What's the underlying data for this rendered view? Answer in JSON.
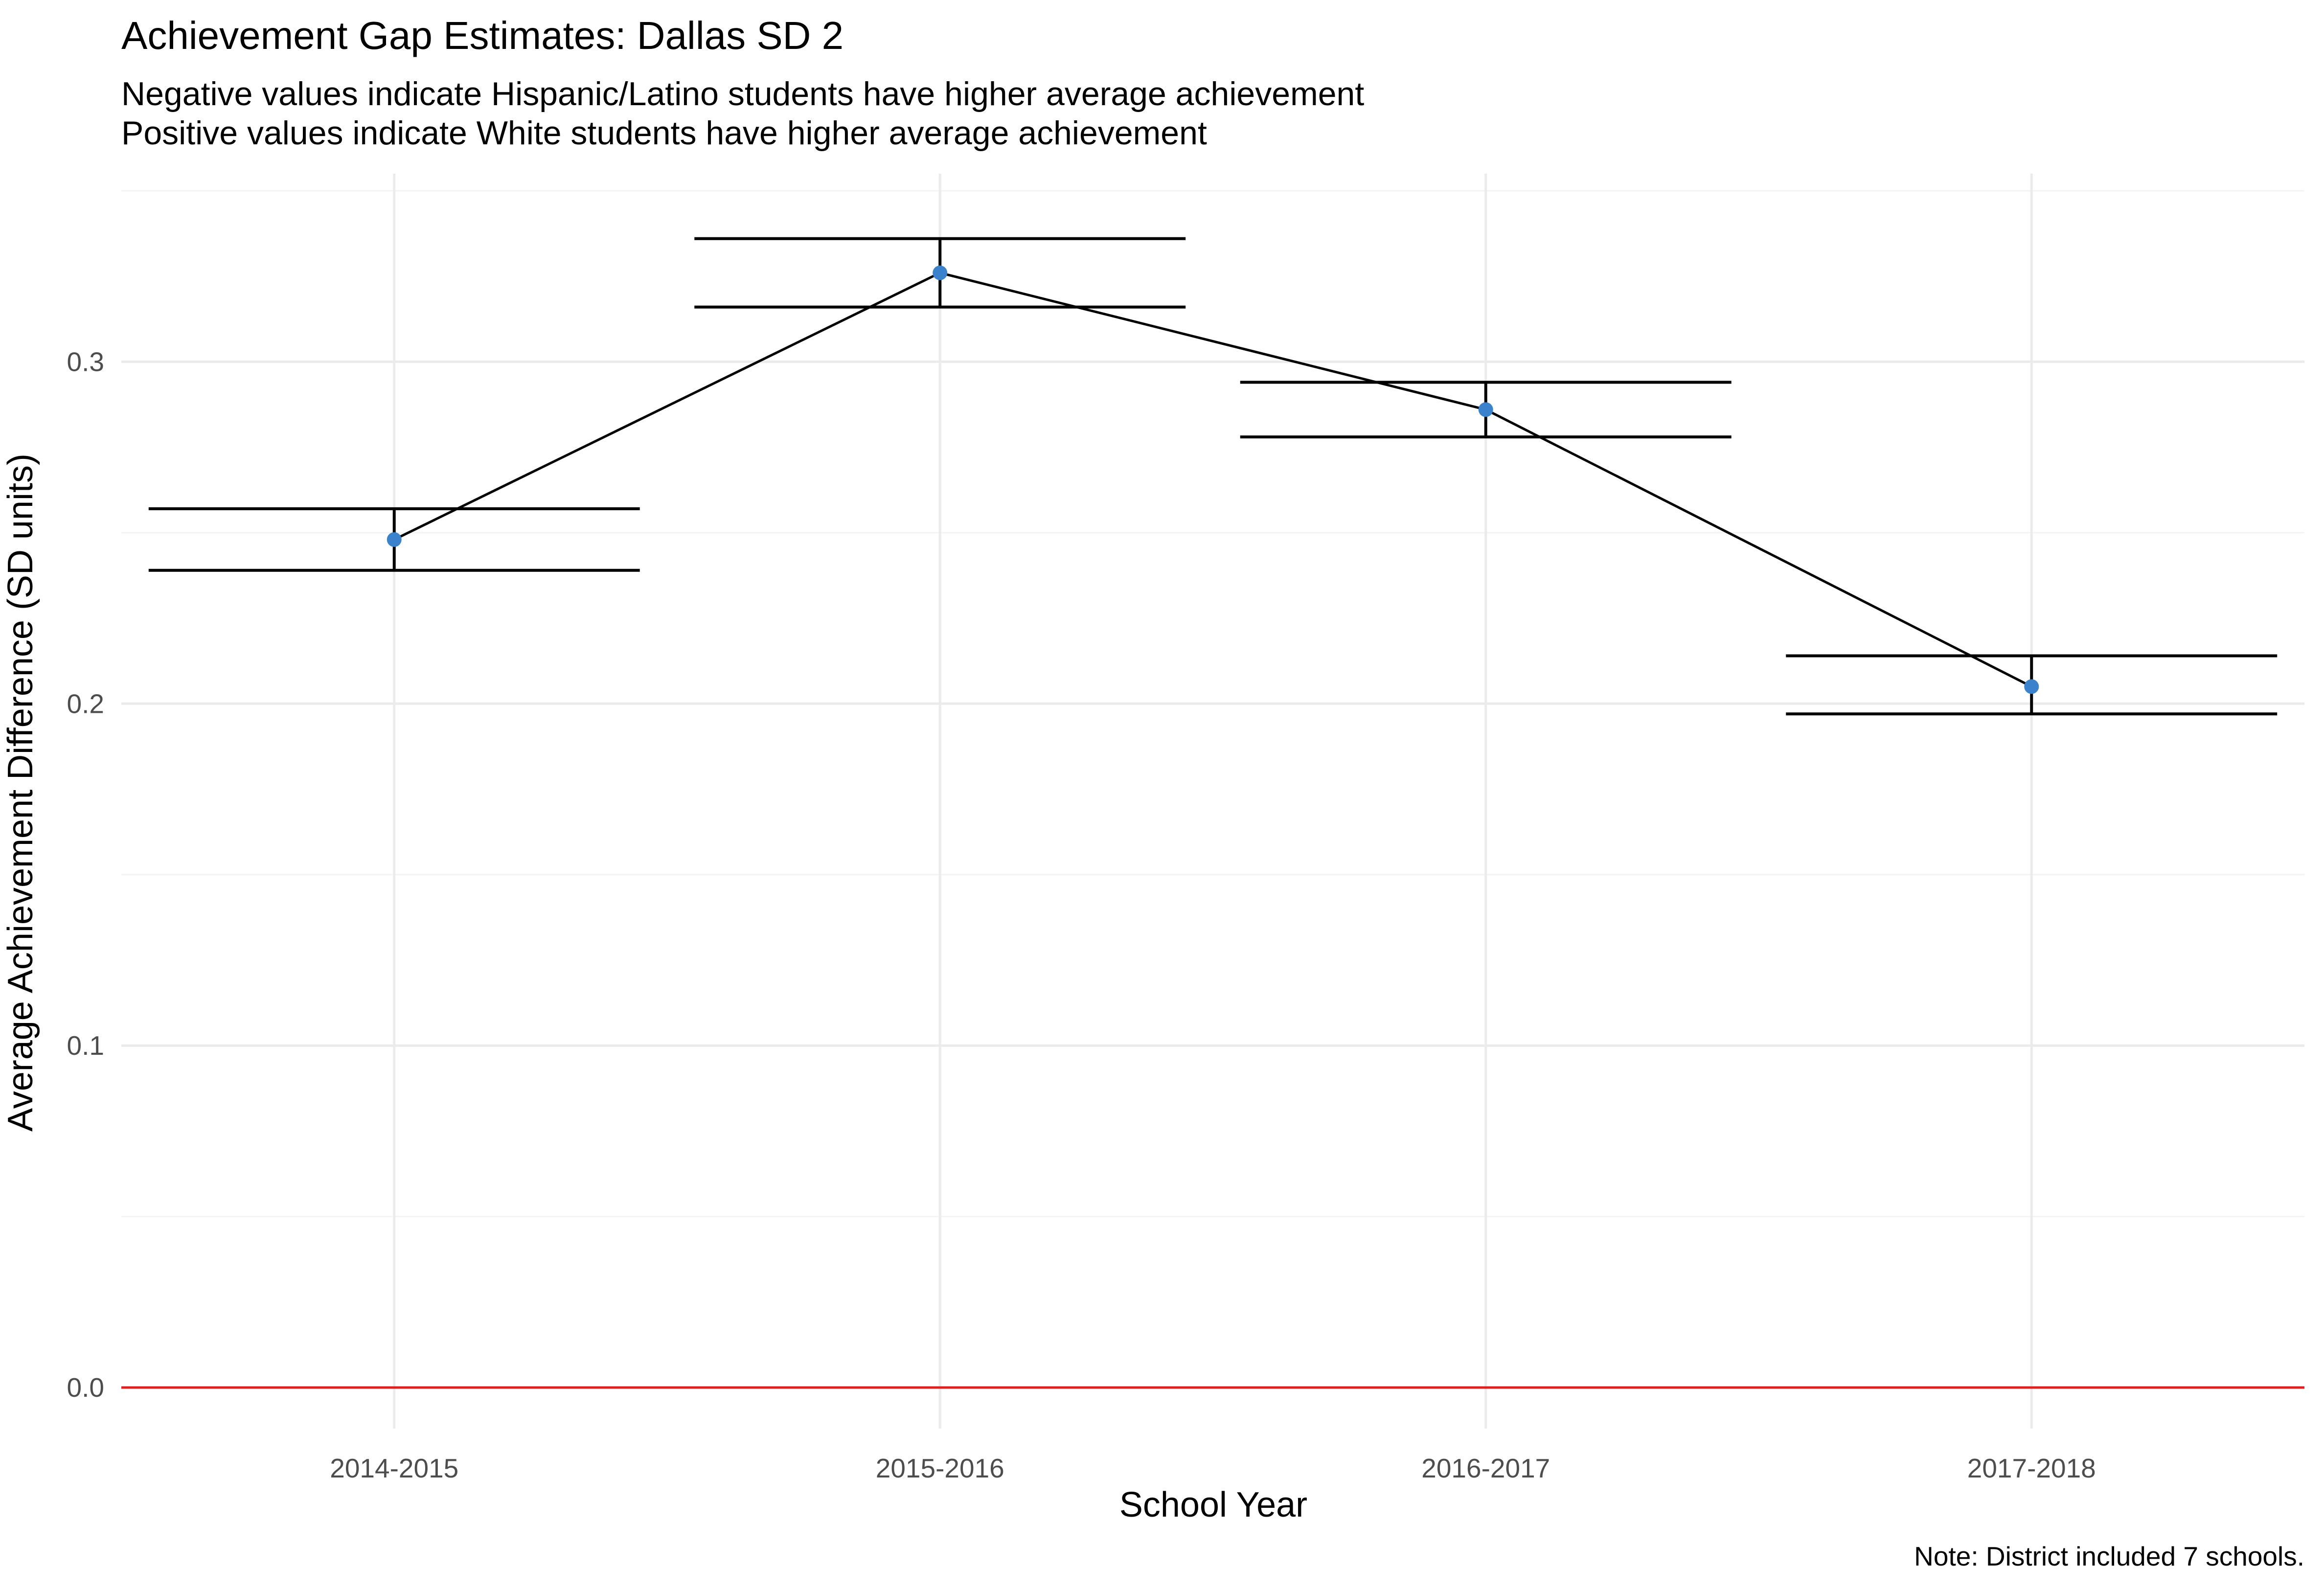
{
  "chart_data": {
    "type": "line",
    "title": "Achievement Gap Estimates: Dallas SD 2",
    "subtitle": [
      "Negative values indicate Hispanic/Latino students have higher average achievement",
      "Positive values indicate White students have higher average achievement"
    ],
    "xlabel": "School Year",
    "ylabel": "Average Achievement Difference (SD units)",
    "caption": "Note: District included 7 schools.",
    "categories": [
      "2014-2015",
      "2015-2016",
      "2016-2017",
      "2017-2018"
    ],
    "values": [
      0.248,
      0.326,
      0.286,
      0.205
    ],
    "error_lower": [
      0.239,
      0.316,
      0.278,
      0.197
    ],
    "error_upper": [
      0.257,
      0.336,
      0.294,
      0.214
    ],
    "ylim": [
      -0.012,
      0.355
    ],
    "yticks": [
      "0.0",
      "0.1",
      "0.2",
      "0.3"
    ],
    "ytick_values": [
      0.0,
      0.1,
      0.2,
      0.3
    ],
    "reference_line": 0.0,
    "grid": true,
    "legend": "none",
    "colors": {
      "point": "#3a82cc",
      "line": "#000000",
      "errorbar": "#000000",
      "reference_line": "#e02020"
    }
  }
}
